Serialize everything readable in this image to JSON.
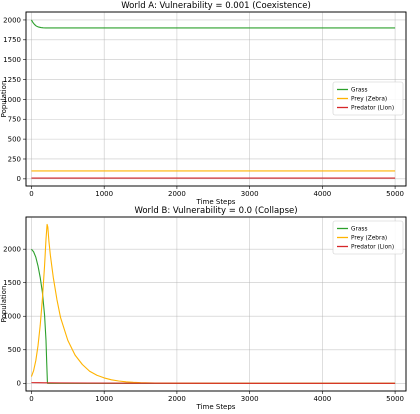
{
  "chart_data": [
    {
      "type": "line",
      "title": "World A: Vulnerability = 0.001 (Coexistence)",
      "xlabel": "Time Steps",
      "ylabel": "Population",
      "xlim": [
        -75,
        5150
      ],
      "ylim": [
        -90,
        2100
      ],
      "xticks": [
        0,
        1000,
        2000,
        3000,
        4000,
        5000
      ],
      "yticks": [
        0,
        250,
        500,
        750,
        1000,
        1250,
        1500,
        1750,
        2000
      ],
      "grid": true,
      "legend_position": "center-right",
      "series": [
        {
          "name": "Grass",
          "color": "#2ca02c",
          "x": [
            0,
            20,
            40,
            60,
            80,
            100,
            130,
            160,
            200,
            300,
            500,
            1000,
            2000,
            3000,
            4000,
            5000
          ],
          "y": [
            2000,
            1968,
            1945,
            1928,
            1917,
            1910,
            1904,
            1901,
            1900,
            1900,
            1900,
            1900,
            1900,
            1900,
            1900,
            1900
          ]
        },
        {
          "name": "Prey (Zebra)",
          "color": "#ffb300",
          "x": [
            0,
            5000
          ],
          "y": [
            100,
            100
          ]
        },
        {
          "name": "Predator (Lion)",
          "color": "#d62728",
          "x": [
            0,
            5000
          ],
          "y": [
            10,
            10
          ]
        }
      ]
    },
    {
      "type": "line",
      "title": "World B: Vulnerability = 0.0 (Collapse)",
      "xlabel": "Time Steps",
      "ylabel": "Population",
      "xlim": [
        -75,
        5150
      ],
      "ylim": [
        -115,
        2480
      ],
      "xticks": [
        0,
        1000,
        2000,
        3000,
        4000,
        5000
      ],
      "yticks": [
        0,
        500,
        1000,
        1500,
        2000
      ],
      "grid": true,
      "legend_position": "top-right",
      "series": [
        {
          "name": "Grass",
          "color": "#2ca02c",
          "x": [
            0,
            30,
            60,
            90,
            120,
            150,
            180,
            200,
            210,
            220,
            5000
          ],
          "y": [
            2000,
            1960,
            1880,
            1750,
            1580,
            1360,
            1020,
            640,
            300,
            0,
            0
          ]
        },
        {
          "name": "Prey (Zebra)",
          "color": "#ffb300",
          "x": [
            0,
            30,
            60,
            90,
            120,
            150,
            180,
            200,
            215,
            225,
            240,
            260,
            300,
            350,
            400,
            500,
            600,
            700,
            800,
            900,
            1000,
            1100,
            1200,
            1300,
            1400,
            1500,
            1700,
            2000,
            2500,
            5000
          ],
          "y": [
            100,
            190,
            340,
            560,
            860,
            1250,
            1750,
            2150,
            2370,
            2330,
            2120,
            1910,
            1580,
            1250,
            980,
            640,
            420,
            280,
            180,
            120,
            80,
            52,
            34,
            22,
            14,
            9,
            4,
            1,
            0,
            0
          ]
        },
        {
          "name": "Predator (Lion)",
          "color": "#d62728",
          "x": [
            0,
            100,
            200,
            400,
            800,
            1500,
            3000,
            5000
          ],
          "y": [
            10,
            9,
            7,
            5,
            3,
            1,
            0,
            0
          ]
        }
      ]
    }
  ]
}
